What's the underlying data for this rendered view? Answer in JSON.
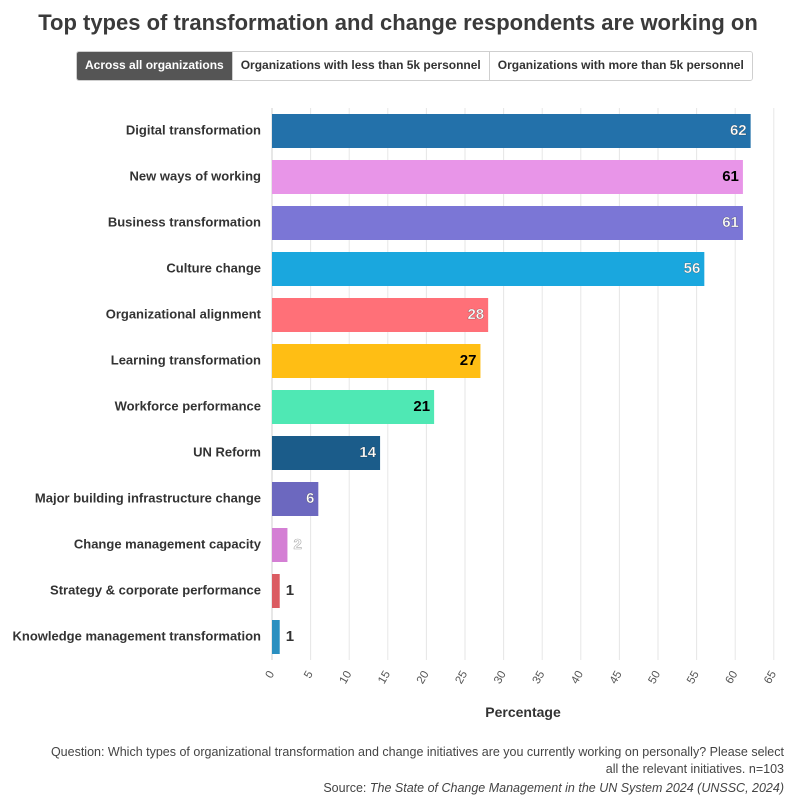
{
  "title": "Top types of transformation and change respondents are working on",
  "tabs": [
    {
      "label": "Across all organizations",
      "active": true
    },
    {
      "label": "Organizations with less than 5k personnel",
      "active": false
    },
    {
      "label": "Organizations with more than 5k personnel",
      "active": false
    }
  ],
  "chart_data": {
    "type": "bar",
    "orientation": "horizontal",
    "categories": [
      "Digital transformation",
      "New ways of working",
      "Business transformation",
      "Culture change",
      "Organizational alignment",
      "Learning transformation",
      "Workforce performance",
      "UN Reform",
      "Major building infrastructure change",
      "Change  management capacity",
      "Strategy & corporate performance",
      "Knowledge management transformation"
    ],
    "values": [
      62,
      61,
      61,
      56,
      28,
      27,
      21,
      14,
      6,
      2,
      1,
      1
    ],
    "colors": [
      "#2371aa",
      "#e895e8",
      "#7b76d6",
      "#1aa7de",
      "#ff7078",
      "#ffbe14",
      "#4fe8b4",
      "#1b5c8a",
      "#6c68bf",
      "#d47fd4",
      "#db5c62",
      "#2a8fc0"
    ],
    "label_colors": [
      "#ffffff",
      "#000000",
      "#ffffff",
      "#ffffff",
      "#ffffff",
      "#000000",
      "#000000",
      "#ffffff",
      "#ffffff",
      "#ffffff",
      "#333333",
      "#333333"
    ],
    "xlabel": "Percentage",
    "xlim": [
      0,
      65
    ],
    "xticks": [
      0,
      5,
      10,
      15,
      20,
      25,
      30,
      35,
      40,
      45,
      50,
      55,
      60,
      65
    ],
    "grid": true
  },
  "footer": {
    "question_line1": "Question: Which types of organizational transformation and change initiatives are you currently working on personally? Please select",
    "question_line2": "all the relevant initiatives. n=103",
    "source_prefix": "Source: ",
    "source_title": "The State of Change Management in the UN System 2024 (UNSSC, 2024)"
  }
}
